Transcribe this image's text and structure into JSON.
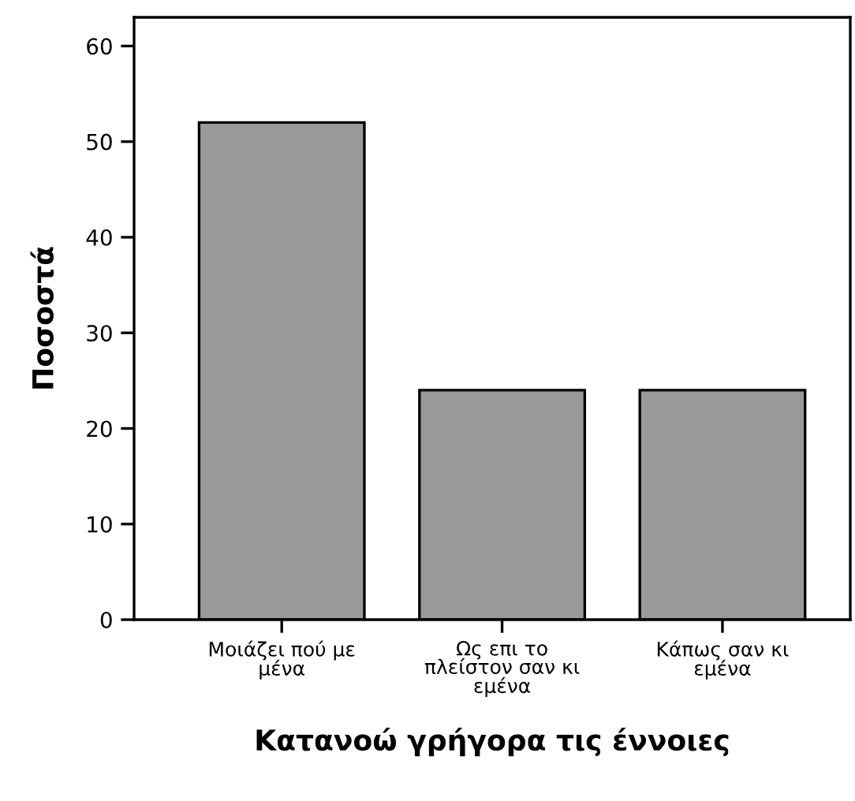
{
  "chart_data": {
    "type": "bar",
    "xlabel": "Κατανοώ γρήγορα τις έννοιες",
    "ylabel": "Ποσοστά",
    "categories": [
      "Μοιάζει πού με\nμένα",
      "Ως επι το\nπλείστον σαν κι\nεμένα",
      "Κάπως σαν κι\nεμένα"
    ],
    "values": [
      52,
      24,
      24
    ],
    "color": "#999999",
    "ylim": [
      0,
      63
    ],
    "yticks": [
      0,
      10,
      20,
      30,
      40,
      50,
      60
    ],
    "grid": false
  }
}
